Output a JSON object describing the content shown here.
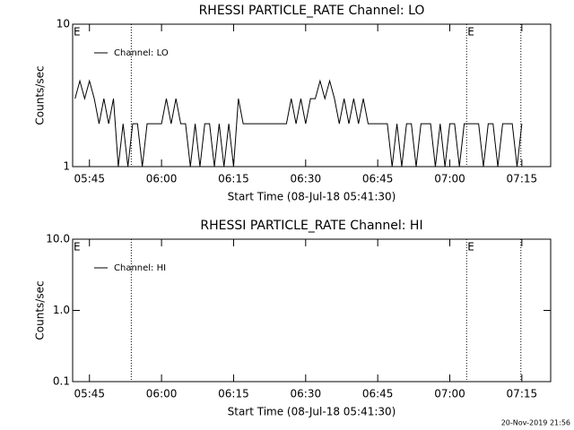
{
  "chart_data": [
    {
      "type": "line",
      "title": "RHESSI PARTICLE_RATE Channel: LO",
      "ylabel": "Counts/sec",
      "xlabel": "Start Time (08-Jul-18 05:41:30)",
      "ylog": true,
      "ylim": [
        1,
        10
      ],
      "yticks": [
        1,
        10
      ],
      "xlim": [
        341.5,
        441
      ],
      "xticks": [
        {
          "value": 345,
          "label": "05:45"
        },
        {
          "value": 360,
          "label": "06:00"
        },
        {
          "value": 375,
          "label": "06:15"
        },
        {
          "value": 390,
          "label": "06:30"
        },
        {
          "value": 405,
          "label": "06:45"
        },
        {
          "value": 420,
          "label": "07:00"
        },
        {
          "value": 435,
          "label": "07:15"
        }
      ],
      "vlines": [
        353.7,
        423.5,
        434.8
      ],
      "annotations": [
        {
          "text": "E",
          "x": 341.5
        },
        {
          "text": "E",
          "x": 423.5
        }
      ],
      "x": [
        342,
        343,
        344,
        345,
        346,
        347,
        348,
        349,
        350,
        351,
        352,
        353,
        354,
        355,
        356,
        357,
        358,
        359,
        360,
        361,
        362,
        363,
        364,
        365,
        366,
        367,
        368,
        369,
        370,
        371,
        372,
        373,
        374,
        375,
        376,
        377,
        378,
        379,
        380,
        381,
        382,
        383,
        384,
        385,
        386,
        387,
        388,
        389,
        390,
        391,
        392,
        393,
        394,
        395,
        396,
        397,
        398,
        399,
        400,
        401,
        402,
        403,
        404,
        405,
        406,
        407,
        408,
        409,
        410,
        411,
        412,
        413,
        414,
        415,
        416,
        417,
        418,
        419,
        420,
        421,
        422,
        423,
        424,
        425,
        426,
        427,
        428,
        429,
        430,
        431,
        432,
        433,
        434,
        435
      ],
      "series": [
        {
          "name": "Channel: LO",
          "color": "#000000",
          "values": [
            3,
            4,
            3,
            4,
            3,
            2,
            3,
            2,
            3,
            1,
            2,
            1,
            2,
            2,
            1,
            2,
            2,
            2,
            2,
            3,
            2,
            3,
            2,
            2,
            1,
            2,
            1,
            2,
            2,
            1,
            2,
            1,
            2,
            1,
            3,
            2,
            2,
            2,
            2,
            2,
            2,
            2,
            2,
            2,
            2,
            3,
            2,
            3,
            2,
            3,
            3,
            4,
            3,
            4,
            3,
            2,
            3,
            2,
            3,
            2,
            3,
            2,
            2,
            2,
            2,
            2,
            1,
            2,
            1,
            2,
            2,
            1,
            2,
            2,
            2,
            1,
            2,
            1,
            2,
            2,
            1,
            2,
            2,
            2,
            2,
            1,
            2,
            2,
            1,
            2,
            2,
            2,
            1,
            2
          ]
        }
      ]
    },
    {
      "type": "line",
      "title": "RHESSI PARTICLE_RATE Channel: HI",
      "ylabel": "Counts/sec",
      "xlabel": "Start Time (08-Jul-18 05:41:30)",
      "ylog": true,
      "ylim": [
        0.1,
        10
      ],
      "yticks": [
        0.1,
        {
          "value": 1,
          "label": "1.0"
        },
        {
          "value": 10,
          "label": "10.0"
        }
      ],
      "xlim": [
        341.5,
        441
      ],
      "xticks": [
        {
          "value": 345,
          "label": "05:45"
        },
        {
          "value": 360,
          "label": "06:00"
        },
        {
          "value": 375,
          "label": "06:15"
        },
        {
          "value": 390,
          "label": "06:30"
        },
        {
          "value": 405,
          "label": "06:45"
        },
        {
          "value": 420,
          "label": "07:00"
        },
        {
          "value": 435,
          "label": "07:15"
        }
      ],
      "vlines": [
        353.7,
        423.5,
        434.8
      ],
      "annotations": [
        {
          "text": "E",
          "x": 341.5
        },
        {
          "text": "E",
          "x": 423.5
        }
      ],
      "x": [],
      "series": [
        {
          "name": "Channel: HI",
          "color": "#000000",
          "values": []
        }
      ]
    }
  ],
  "footer": "20-Nov-2019 21:56"
}
